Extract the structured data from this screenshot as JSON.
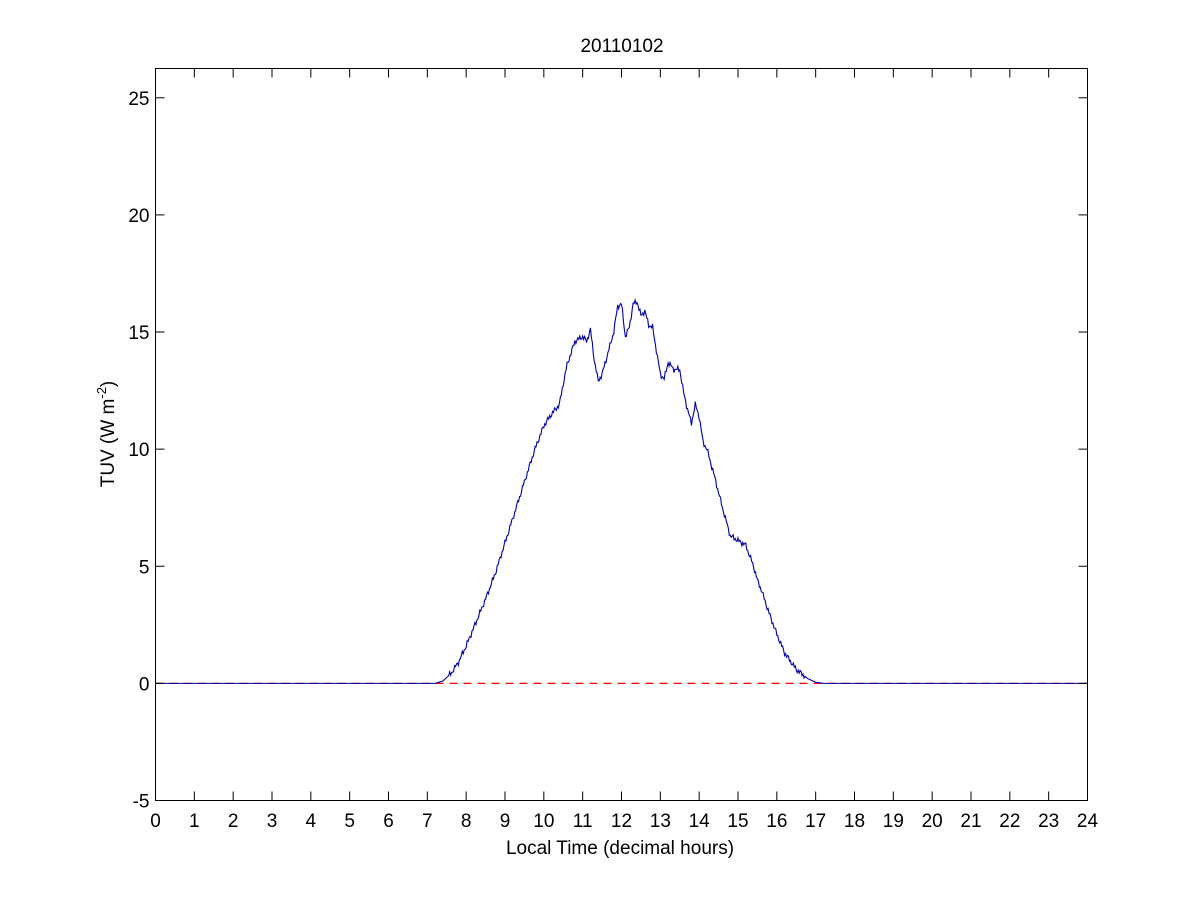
{
  "chart_data": {
    "type": "line",
    "title": "20110102",
    "xlabel": "Local Time (decimal hours)",
    "ylabel": {
      "main": "TUV (W m",
      "superscript": "-2",
      "close": ")"
    },
    "xlim": [
      0,
      24
    ],
    "ylim": [
      -5,
      26.25
    ],
    "xticks": [
      0,
      1,
      2,
      3,
      4,
      5,
      6,
      7,
      8,
      9,
      10,
      11,
      12,
      13,
      14,
      15,
      16,
      17,
      18,
      19,
      20,
      21,
      22,
      23,
      24
    ],
    "yticks": [
      -5,
      0,
      5,
      10,
      15,
      20,
      25
    ],
    "grid": false,
    "legend": "none",
    "colors": {
      "tuv_series": "#0000aa",
      "zero_line": "#ff0000",
      "axes": "#000000"
    },
    "zero_line": {
      "y": 0,
      "style": "dashed"
    },
    "series": [
      {
        "x": [
          0,
          7.2,
          7.4,
          7.6,
          7.8,
          8.0,
          8.25,
          8.5,
          8.75,
          9.0,
          9.25,
          9.5,
          9.75,
          10.0,
          10.2,
          10.4,
          10.5,
          10.6,
          10.8,
          11.0,
          11.1,
          11.2,
          11.3,
          11.4,
          11.5,
          11.6,
          11.8,
          11.9,
          12.0,
          12.1,
          12.2,
          12.3,
          12.4,
          12.5,
          12.6,
          12.7,
          12.8,
          13.0,
          13.1,
          13.2,
          13.35,
          13.5,
          13.6,
          13.7,
          13.8,
          13.9,
          14.0,
          14.1,
          14.2,
          14.4,
          14.6,
          14.8,
          15.0,
          15.2,
          15.4,
          15.5,
          15.6,
          15.8,
          16.0,
          16.2,
          16.5,
          16.8,
          17.0,
          17.2,
          17.3,
          24
        ],
        "y": [
          0,
          0,
          0.1,
          0.4,
          0.9,
          1.6,
          2.6,
          3.6,
          4.7,
          6.0,
          7.3,
          8.6,
          9.9,
          11.0,
          11.5,
          11.9,
          12.8,
          13.6,
          14.6,
          14.8,
          14.6,
          15.1,
          13.8,
          12.9,
          13.2,
          13.8,
          15.0,
          16.1,
          16.2,
          14.8,
          15.2,
          16.2,
          16.3,
          15.7,
          15.9,
          15.3,
          15.2,
          13.2,
          13.0,
          13.7,
          13.4,
          13.4,
          12.4,
          11.7,
          11.1,
          11.9,
          11.4,
          10.3,
          10.0,
          8.8,
          7.5,
          6.3,
          6.1,
          5.9,
          5.0,
          4.4,
          4.0,
          3.0,
          2.1,
          1.3,
          0.6,
          0.2,
          0.05,
          0,
          0,
          0
        ]
      }
    ]
  }
}
